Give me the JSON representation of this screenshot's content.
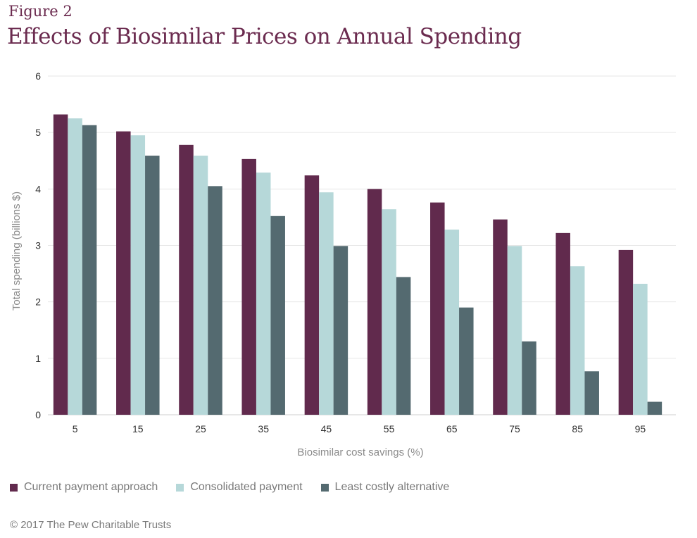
{
  "header": {
    "figure_label": "Figure 2",
    "title": "Effects of Biosimilar Prices on Annual Spending"
  },
  "footer": {
    "copyright": "© 2017 The Pew Charitable Trusts"
  },
  "colors": {
    "current": "#612a4d",
    "consolidated": "#b6d8d9",
    "least": "#546a70",
    "grid": "#e6e6e6",
    "axis_text": "#333333",
    "label_text": "#8a8a8a"
  },
  "chart_data": {
    "type": "bar",
    "title": "Effects of Biosimilar Prices on Annual Spending",
    "xlabel": "Biosimilar cost savings (%)",
    "ylabel": "Total spending (billions $)",
    "ylim": [
      0,
      6
    ],
    "yticks": [
      0,
      1,
      2,
      3,
      4,
      5,
      6
    ],
    "grid": true,
    "legend_position": "bottom",
    "categories": [
      "5",
      "15",
      "25",
      "35",
      "45",
      "55",
      "65",
      "75",
      "85",
      "95"
    ],
    "series": [
      {
        "name": "Current payment approach",
        "color_key": "current",
        "values": [
          5.32,
          5.02,
          4.78,
          4.53,
          4.24,
          4.0,
          3.76,
          3.46,
          3.22,
          2.92
        ]
      },
      {
        "name": "Consolidated payment",
        "color_key": "consolidated",
        "values": [
          5.25,
          4.95,
          4.59,
          4.29,
          3.94,
          3.64,
          3.28,
          2.99,
          2.63,
          2.32
        ]
      },
      {
        "name": "Least costly alternative",
        "color_key": "least",
        "values": [
          5.13,
          4.59,
          4.05,
          3.52,
          2.99,
          2.44,
          1.9,
          1.3,
          0.77,
          0.23
        ]
      }
    ]
  }
}
